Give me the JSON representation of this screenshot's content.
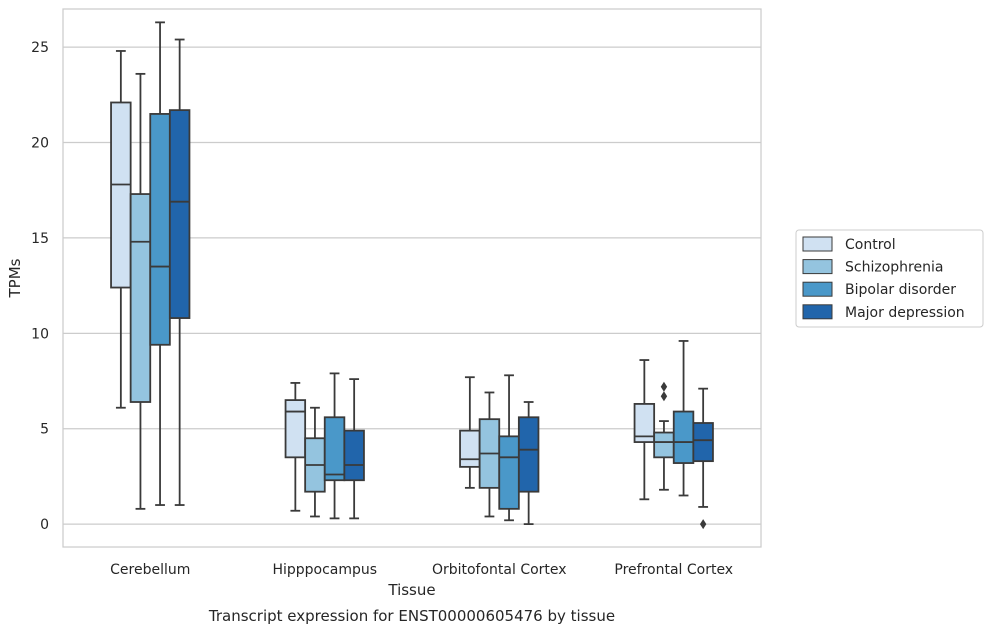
{
  "chart_data": {
    "type": "box",
    "caption": "Transcript expression for ENST00000605476 by tissue",
    "xlabel": "Tissue",
    "ylabel": "TPMs",
    "ylim": [
      -1.2,
      27.0
    ],
    "yticks": [
      0,
      5,
      10,
      15,
      20,
      25
    ],
    "grid": "horizontal",
    "legend_position": "right",
    "categories": [
      "Cerebellum",
      "Hipppocampus",
      "Orbitofontal Cortex",
      "Prefrontal Cortex"
    ],
    "series": [
      {
        "name": "Control",
        "color": "#d0e1f2",
        "boxes": [
          {
            "whisker_low": 6.1,
            "q1": 12.4,
            "median": 17.8,
            "q3": 22.1,
            "whisker_high": 24.8,
            "outliers": []
          },
          {
            "whisker_low": 0.7,
            "q1": 3.5,
            "median": 5.9,
            "q3": 6.5,
            "whisker_high": 7.4,
            "outliers": []
          },
          {
            "whisker_low": 1.9,
            "q1": 3.0,
            "median": 3.4,
            "q3": 4.9,
            "whisker_high": 7.7,
            "outliers": []
          },
          {
            "whisker_low": 1.3,
            "q1": 4.3,
            "median": 4.6,
            "q3": 6.3,
            "whisker_high": 8.6,
            "outliers": []
          }
        ]
      },
      {
        "name": "Schizophrenia",
        "color": "#94c4df",
        "boxes": [
          {
            "whisker_low": 0.8,
            "q1": 6.4,
            "median": 14.8,
            "q3": 17.3,
            "whisker_high": 23.6,
            "outliers": []
          },
          {
            "whisker_low": 0.4,
            "q1": 1.7,
            "median": 3.1,
            "q3": 4.5,
            "whisker_high": 6.1,
            "outliers": []
          },
          {
            "whisker_low": 0.4,
            "q1": 1.9,
            "median": 3.7,
            "q3": 5.5,
            "whisker_high": 6.9,
            "outliers": []
          },
          {
            "whisker_low": 1.8,
            "q1": 3.5,
            "median": 4.3,
            "q3": 4.8,
            "whisker_high": 5.4,
            "outliers": [
              6.7,
              7.2
            ]
          }
        ]
      },
      {
        "name": "Bipolar disorder",
        "color": "#4a98c9",
        "boxes": [
          {
            "whisker_low": 1.0,
            "q1": 9.4,
            "median": 13.5,
            "q3": 21.5,
            "whisker_high": 26.3,
            "outliers": []
          },
          {
            "whisker_low": 0.3,
            "q1": 2.3,
            "median": 2.6,
            "q3": 5.6,
            "whisker_high": 7.9,
            "outliers": []
          },
          {
            "whisker_low": 0.2,
            "q1": 0.8,
            "median": 3.5,
            "q3": 4.6,
            "whisker_high": 7.8,
            "outliers": []
          },
          {
            "whisker_low": 1.5,
            "q1": 3.2,
            "median": 4.3,
            "q3": 5.9,
            "whisker_high": 9.6,
            "outliers": []
          }
        ]
      },
      {
        "name": "Major depression",
        "color": "#2165ab",
        "boxes": [
          {
            "whisker_low": 1.0,
            "q1": 10.8,
            "median": 16.9,
            "q3": 21.7,
            "whisker_high": 25.4,
            "outliers": []
          },
          {
            "whisker_low": 0.3,
            "q1": 2.3,
            "median": 3.1,
            "q3": 4.9,
            "whisker_high": 7.6,
            "outliers": []
          },
          {
            "whisker_low": 0.0,
            "q1": 1.7,
            "median": 3.9,
            "q3": 5.6,
            "whisker_high": 6.4,
            "outliers": []
          },
          {
            "whisker_low": 0.9,
            "q1": 3.3,
            "median": 4.4,
            "q3": 5.3,
            "whisker_high": 7.1,
            "outliers": [
              0.0
            ]
          }
        ]
      }
    ]
  }
}
